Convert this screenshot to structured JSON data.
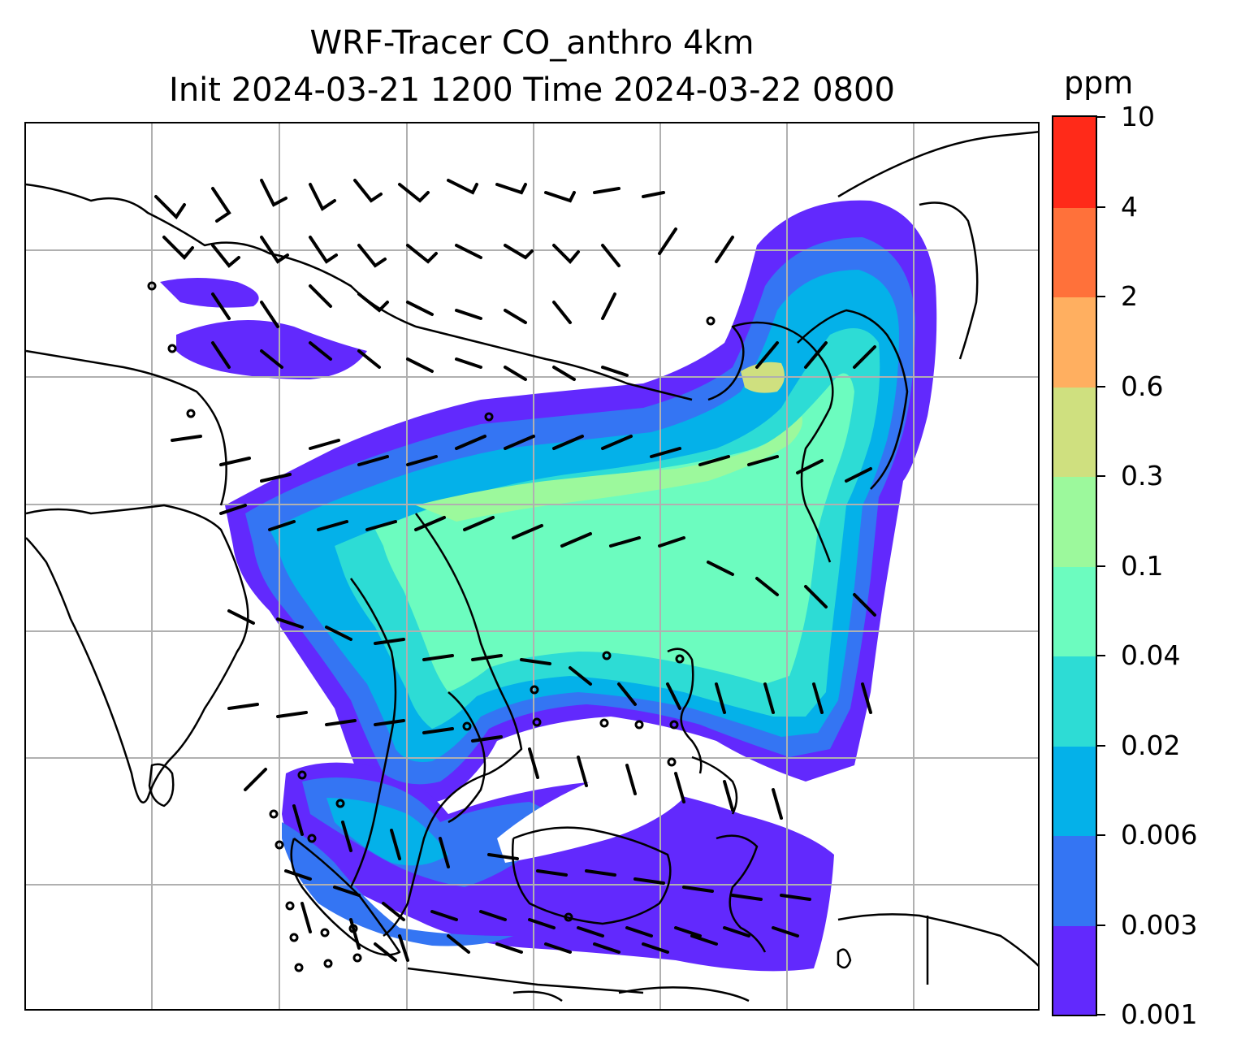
{
  "header": {
    "title_line1": "WRF-Tracer CO_anthro 4km",
    "title_line2": "Init 2024-03-21 1200 Time 2024-03-22 0800"
  },
  "colorbar": {
    "unit": "ppm",
    "levels": [
      "0.001",
      "0.003",
      "0.006",
      "0.02",
      "0.04",
      "0.1",
      "0.3",
      "0.6",
      "2",
      "4",
      "10"
    ],
    "colors": [
      "#6229fd",
      "#3475f3",
      "#04b1e9",
      "#2ddcd5",
      "#6cfcbf",
      "#9cf99c",
      "#cfe07f",
      "#ffaf60",
      "#ff713a",
      "#ff2a19"
    ]
  },
  "map": {
    "projection_grid": "gridlines",
    "coastline_color": "#000000",
    "gridline_color": "#b0b0b0"
  }
}
